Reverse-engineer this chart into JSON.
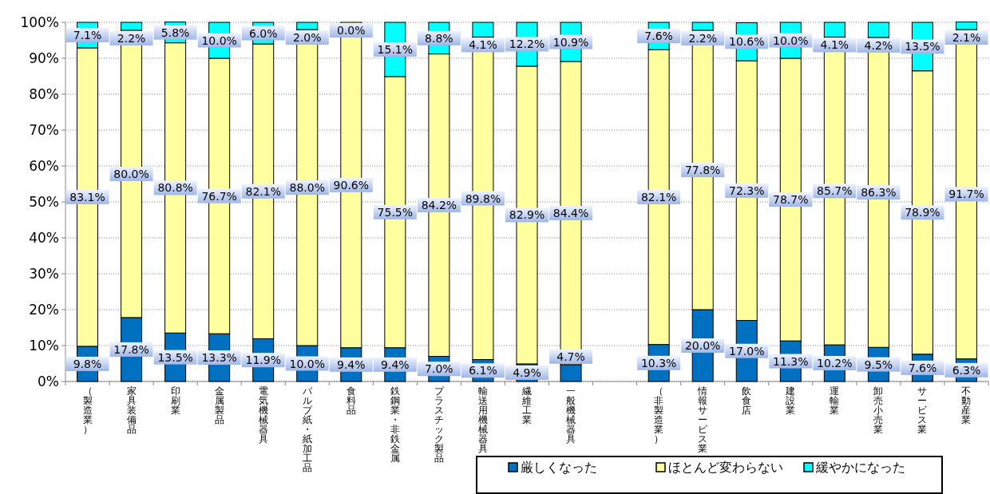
{
  "chart_data": {
    "type": "bar",
    "stacked": true,
    "categories": [
      "（製造業）",
      "家具装備品",
      "印刷業",
      "金属製品",
      "電気機械器具",
      "パルプ紙・紙加工品",
      "食料品",
      "鉄鋼業・非鉄金属",
      "プラスチック製品",
      "輸送用機械器具",
      "繊維工業",
      "一般機械器具",
      null,
      "（非製造業）",
      "情報サービス業",
      "飲食店",
      "建設業",
      "運輸業",
      "卸売小売業",
      "サービス業",
      "不動産業"
    ],
    "series": [
      {
        "name": "厳しくなった",
        "color": "#0070c0",
        "values": [
          9.8,
          17.8,
          13.5,
          13.3,
          11.9,
          10.0,
          9.4,
          9.4,
          7.0,
          6.1,
          4.9,
          4.7,
          null,
          10.3,
          20.0,
          17.0,
          11.3,
          10.2,
          9.5,
          7.6,
          6.3
        ],
        "value_labels": [
          "9.8%",
          "17.8%",
          "13.5%",
          "13.3%",
          "11.9%",
          "10.0%",
          "9.4%",
          "9.4%",
          "7.0%",
          "6.1%",
          "4.9%",
          "4.7%",
          null,
          "10.3%",
          "20.0%",
          "17.0%",
          "11.3%",
          "10.2%",
          "9.5%",
          "7.6%",
          "6.3%"
        ]
      },
      {
        "name": "ほとんど変わらない",
        "color": "#ffffa0",
        "values": [
          83.1,
          80.0,
          80.8,
          76.7,
          82.1,
          88.0,
          90.6,
          75.5,
          84.2,
          89.8,
          82.9,
          84.4,
          null,
          82.1,
          77.8,
          72.3,
          78.7,
          85.7,
          86.3,
          78.9,
          91.7
        ],
        "value_labels": [
          "83.1%",
          "80.0%",
          "80.8%",
          "76.7%",
          "82.1%",
          "88.0%",
          "90.6%",
          "75.5%",
          "84.2%",
          "89.8%",
          "82.9%",
          "84.4%",
          null,
          "82.1%",
          "77.8%",
          "72.3%",
          "78.7%",
          "85.7%",
          "86.3%",
          "78.9%",
          "91.7%"
        ]
      },
      {
        "name": "緩やかになった",
        "color": "#00ffff",
        "values": [
          7.1,
          2.2,
          5.8,
          10.0,
          6.0,
          2.0,
          0.0,
          15.1,
          8.8,
          4.1,
          12.2,
          10.9,
          null,
          7.6,
          2.2,
          10.6,
          10.0,
          4.1,
          4.2,
          13.5,
          2.1
        ],
        "value_labels": [
          "7.1%",
          "2.2%",
          "5.8%",
          "10.0%",
          "6.0%",
          "2.0%",
          "0.0%",
          "15.1%",
          "8.8%",
          "4.1%",
          "12.2%",
          "10.9%",
          null,
          "7.6%",
          "2.2%",
          "10.6%",
          "10.0%",
          "4.1%",
          "4.2%",
          "13.5%",
          "2.1%"
        ]
      }
    ],
    "ylim": [
      0,
      100
    ],
    "yticks": [
      {
        "value": 0,
        "label": "0%"
      },
      {
        "value": 10,
        "label": "10%"
      },
      {
        "value": 20,
        "label": "20%"
      },
      {
        "value": 30,
        "label": "30%"
      },
      {
        "value": 40,
        "label": "40%"
      },
      {
        "value": 50,
        "label": "50%"
      },
      {
        "value": 60,
        "label": "60%"
      },
      {
        "value": 70,
        "label": "70%"
      },
      {
        "value": 80,
        "label": "80%"
      },
      {
        "value": 90,
        "label": "90%"
      },
      {
        "value": 100,
        "label": "100%"
      }
    ],
    "grid": "y",
    "legend": "bottom"
  }
}
